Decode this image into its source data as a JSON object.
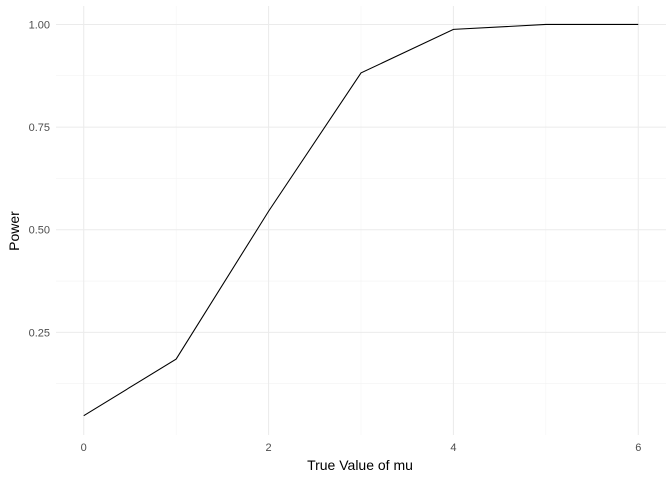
{
  "chart_data": {
    "type": "line",
    "title": "",
    "xlabel": "True Value of mu",
    "ylabel": "Power",
    "x": [
      0,
      1,
      2,
      3,
      4,
      5,
      6
    ],
    "series": [
      {
        "values": [
          0.047,
          0.185,
          0.545,
          0.882,
          0.988,
          1.0,
          1.0
        ]
      }
    ],
    "xlim": [
      -0.3,
      6.3
    ],
    "ylim": [
      0.0,
      1.045
    ],
    "xticks": [
      0,
      2,
      4,
      6
    ],
    "xtick_labels": [
      "0",
      "2",
      "4",
      "6"
    ],
    "xminor": [
      1,
      3,
      5
    ],
    "yticks": [
      0.25,
      0.5,
      0.75,
      1.0
    ],
    "ytick_labels": [
      "0.25",
      "0.50",
      "0.75",
      "1.00"
    ],
    "yminor": [
      0.125,
      0.375,
      0.625,
      0.875
    ],
    "grid": true,
    "legend": "none",
    "theme": "minimal",
    "line_color": "#000000",
    "grid_color": "#ebebeb"
  }
}
